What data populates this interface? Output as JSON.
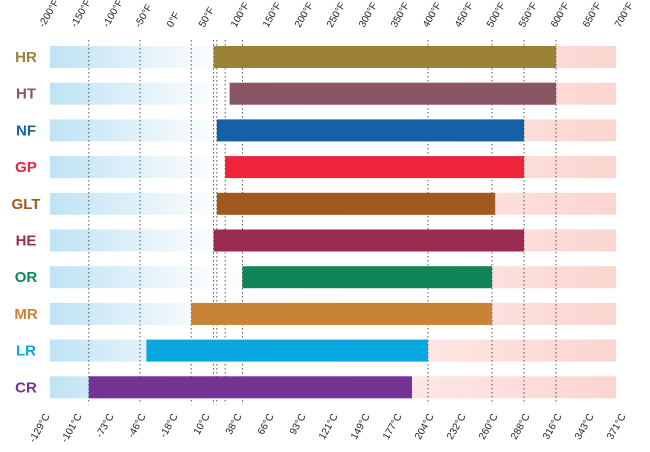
{
  "chart_data": {
    "type": "bar",
    "orientation": "horizontal-range",
    "title": "",
    "xlabel": "",
    "ylabel": "",
    "x_ticks_fahrenheit": [
      "-200°F",
      "-150°F",
      "-100°F",
      "-50°F",
      "0°F",
      "50°F",
      "100°F",
      "150°F",
      "200°F",
      "250°F",
      "300°F",
      "350°F",
      "400°F",
      "450°F",
      "500°F",
      "550°F",
      "600°F",
      "650°F",
      "700°F"
    ],
    "x_ticks_celsius": [
      "-129°C",
      "-101°C",
      "-73°C",
      "-46°C",
      "-18°C",
      "10°C",
      "38°C",
      "66°C",
      "93°C",
      "121°C",
      "149°C",
      "177°C",
      "204°C",
      "232°C",
      "260°C",
      "288°C",
      "316°C",
      "343°C",
      "371°C"
    ],
    "xlim_fahrenheit": [
      -200,
      700
    ],
    "grid": "vertical dotted lines at selected range endpoints",
    "background": "gradient from light blue (cold) through white to light pink (hot)",
    "categories": [
      "HR",
      "HT",
      "NF",
      "GP",
      "GLT",
      "HE",
      "OR",
      "MR",
      "LR",
      "CR"
    ],
    "series": [
      {
        "ranges_fahrenheit": [
          [
            65,
            600
          ],
          [
            90,
            600
          ],
          [
            70,
            550
          ],
          [
            83,
            550
          ],
          [
            70,
            505
          ],
          [
            65,
            550
          ],
          [
            110,
            500
          ],
          [
            30,
            500
          ],
          [
            -40,
            400
          ],
          [
            -130,
            375
          ]
        ],
        "colors": [
          "#9b8134",
          "#8b5664",
          "#1560a6",
          "#ef233a",
          "#a2591f",
          "#9c2b52",
          "#0e8657",
          "#c98336",
          "#06a8df",
          "#743294"
        ],
        "label_colors": [
          "#9b8134",
          "#8b5664",
          "#1560a6",
          "#ef233a",
          "#a2591f",
          "#9c2b52",
          "#0e8657",
          "#c98336",
          "#06a8df",
          "#743294"
        ]
      }
    ],
    "gridline_values_fahrenheit": [
      -130,
      -50,
      30,
      65,
      70,
      83,
      110,
      400,
      500,
      550,
      600
    ]
  }
}
